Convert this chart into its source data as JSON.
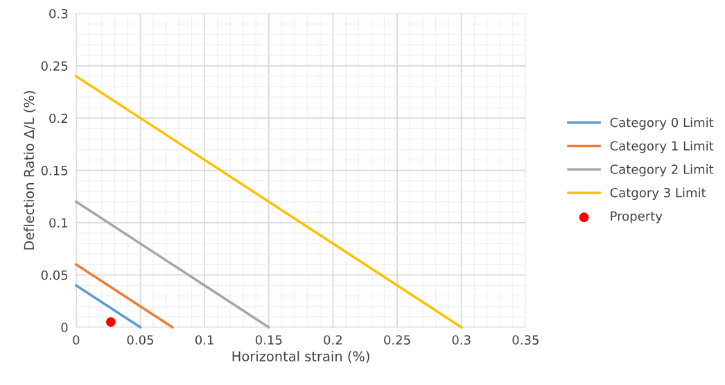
{
  "chart_data": {
    "type": "line",
    "xlabel": "Horizontal strain (%)",
    "ylabel": "Deflection Ratio Δ/L (%)",
    "xlim": [
      0,
      0.35
    ],
    "xticks": [
      0,
      0.05,
      0.1,
      0.15,
      0.2,
      0.25,
      0.3,
      0.35
    ],
    "ylim": [
      0,
      0.3
    ],
    "yticks": [
      0,
      0.05,
      0.1,
      0.15,
      0.2,
      0.25,
      0.3
    ],
    "grid": true,
    "legend": "right",
    "line_style": "solid",
    "series": [
      {
        "name": "Category 0 Limit",
        "color": "#5b9bd5",
        "x": [
          0,
          0.05
        ],
        "values": [
          0.04,
          0
        ]
      },
      {
        "name": "Category 1 Limit",
        "color": "#ed7d31",
        "x": [
          0,
          0.075
        ],
        "values": [
          0.06,
          0
        ]
      },
      {
        "name": "Category 2 Limit",
        "color": "#a5a5a5",
        "x": [
          0,
          0.15
        ],
        "values": [
          0.12,
          0
        ]
      },
      {
        "name": "Catgory 3 Limit",
        "color": "#ffc000",
        "x": [
          0,
          0.3
        ],
        "values": [
          0.24,
          0
        ]
      },
      {
        "name": "Property",
        "type": "scatter",
        "marker": "circle",
        "color": "#ff0000",
        "x": [
          0.027
        ],
        "values": [
          0.005
        ]
      }
    ]
  }
}
